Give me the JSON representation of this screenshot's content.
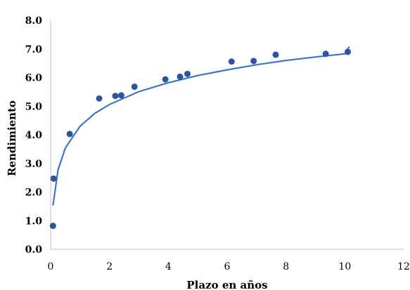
{
  "chart_data": {
    "type": "scatter",
    "title": "",
    "xlabel": "Plazo en años",
    "ylabel": "Rendimiento",
    "xlim": [
      0,
      12
    ],
    "ylim": [
      0,
      8
    ],
    "x_ticks": [
      "0",
      "2",
      "4",
      "6",
      "8",
      "10",
      "12"
    ],
    "y_ticks": [
      "0.0",
      "1.0",
      "2.0",
      "3.0",
      "4.0",
      "5.0",
      "6.0",
      "7.0",
      "8.0"
    ],
    "grid": false,
    "legend": "none",
    "point_color": "#2E54A0",
    "curve_color": "#4472C4",
    "points": [
      {
        "x": 0.08,
        "y": 0.82
      },
      {
        "x": 0.1,
        "y": 2.47
      },
      {
        "x": 0.65,
        "y": 4.03
      },
      {
        "x": 1.65,
        "y": 5.27
      },
      {
        "x": 2.2,
        "y": 5.36
      },
      {
        "x": 2.4,
        "y": 5.38
      },
      {
        "x": 2.85,
        "y": 5.68
      },
      {
        "x": 3.9,
        "y": 5.94
      },
      {
        "x": 4.4,
        "y": 6.03
      },
      {
        "x": 4.65,
        "y": 6.13
      },
      {
        "x": 6.15,
        "y": 6.56
      },
      {
        "x": 6.9,
        "y": 6.58
      },
      {
        "x": 7.65,
        "y": 6.8
      },
      {
        "x": 9.35,
        "y": 6.83
      },
      {
        "x": 10.1,
        "y": 6.9
      }
    ],
    "trendline": {
      "type": "logarithmic",
      "points": [
        {
          "x": 0.08,
          "y": 1.53
        },
        {
          "x": 0.25,
          "y": 2.77
        },
        {
          "x": 0.5,
          "y": 3.54
        },
        {
          "x": 1.0,
          "y": 4.3
        },
        {
          "x": 1.5,
          "y": 4.75
        },
        {
          "x": 2.0,
          "y": 5.06
        },
        {
          "x": 3.0,
          "y": 5.51
        },
        {
          "x": 4.0,
          "y": 5.82
        },
        {
          "x": 5.0,
          "y": 6.07
        },
        {
          "x": 6.0,
          "y": 6.27
        },
        {
          "x": 7.0,
          "y": 6.45
        },
        {
          "x": 8.0,
          "y": 6.6
        },
        {
          "x": 9.0,
          "y": 6.72
        },
        {
          "x": 10.0,
          "y": 6.83
        },
        {
          "x": 10.15,
          "y": 7.08
        }
      ]
    }
  }
}
